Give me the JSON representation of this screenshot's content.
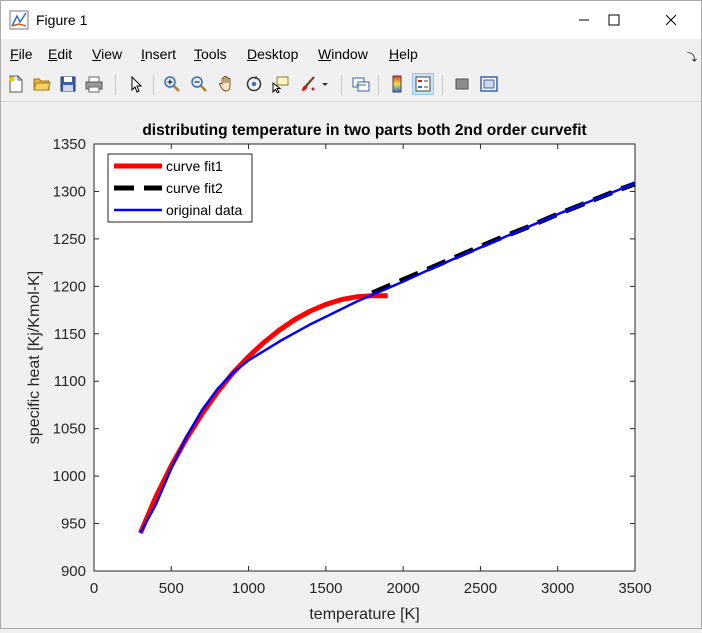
{
  "window": {
    "title": "Figure 1"
  },
  "menu": {
    "items": [
      {
        "label": "File",
        "accel": "F",
        "rest": "ile"
      },
      {
        "label": "Edit",
        "accel": "E",
        "rest": "dit"
      },
      {
        "label": "View",
        "accel": "V",
        "rest": "iew"
      },
      {
        "label": "Insert",
        "accel": "I",
        "rest": "nsert"
      },
      {
        "label": "Tools",
        "accel": "T",
        "rest": "ools"
      },
      {
        "label": "Desktop",
        "accel": "D",
        "rest": "esktop"
      },
      {
        "label": "Window",
        "accel": "W",
        "rest": "indow"
      },
      {
        "label": "Help",
        "accel": "H",
        "rest": "elp"
      }
    ]
  },
  "toolbar": {
    "buttons": [
      "new-figure-icon",
      "open-file-icon",
      "save-icon",
      "print-icon",
      "pointer-icon",
      "zoom-in-icon",
      "zoom-out-icon",
      "pan-hand-icon",
      "rotate-3d-icon",
      "data-cursor-icon",
      "brush-icon",
      "brush-dropdown-icon",
      "link-plot-icon",
      "colorbar-icon",
      "legend-icon",
      "hide-plot-tools-icon",
      "show-plot-tools-icon"
    ]
  },
  "chart_data": {
    "type": "line",
    "title": "distributing temperature in two parts both 2nd order curvefit",
    "xlabel": "temperature [K]",
    "ylabel": "specific heat [Kj/Kmol-K]",
    "xlim": [
      0,
      3500
    ],
    "ylim": [
      900,
      1350
    ],
    "xticks": [
      0,
      500,
      1000,
      1500,
      2000,
      2500,
      3000,
      3500
    ],
    "yticks": [
      900,
      950,
      1000,
      1050,
      1100,
      1150,
      1200,
      1250,
      1300,
      1350
    ],
    "grid": false,
    "legend_position": "top-left",
    "series": [
      {
        "name": "curve fit1",
        "color": "#ff0000",
        "style": "solid-thick",
        "x": [
          300,
          400,
          500,
          600,
          700,
          800,
          900,
          1000,
          1100,
          1200,
          1300,
          1400,
          1500,
          1600,
          1700,
          1800,
          1900
        ],
        "y": [
          940,
          978,
          1011,
          1040,
          1066,
          1089,
          1109,
          1126,
          1141,
          1154,
          1165,
          1174,
          1181,
          1186,
          1189,
          1190,
          1190
        ]
      },
      {
        "name": "curve fit2",
        "color": "#000000",
        "style": "dashed-thick",
        "x": [
          1800,
          2000,
          2200,
          2400,
          2600,
          2800,
          3000,
          3200,
          3400,
          3500
        ],
        "y": [
          1193,
          1207,
          1221,
          1235,
          1249,
          1262,
          1276,
          1289,
          1302,
          1308
        ]
      },
      {
        "name": "original data",
        "color": "#0000ff",
        "style": "solid",
        "x": [
          300,
          400,
          500,
          600,
          700,
          800,
          900,
          1000,
          1100,
          1200,
          1300,
          1400,
          1500,
          1600,
          1700,
          1800,
          2000,
          2200,
          2400,
          2600,
          2800,
          3000,
          3200,
          3400,
          3500
        ],
        "y": [
          940,
          970,
          1008,
          1042,
          1070,
          1092,
          1109,
          1122,
          1132,
          1142,
          1151,
          1160,
          1168,
          1176,
          1184,
          1191,
          1205,
          1220,
          1234,
          1248,
          1262,
          1276,
          1289,
          1302,
          1309
        ]
      }
    ]
  }
}
